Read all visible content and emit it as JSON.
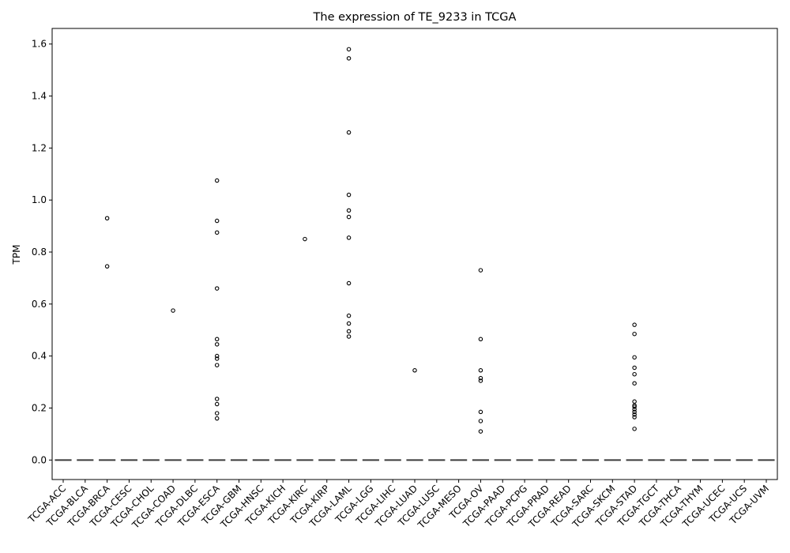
{
  "chart_data": {
    "type": "box",
    "title": "The expression of TE_9233 in TCGA",
    "xlabel": "",
    "ylabel": "TPM",
    "ylim": [
      -0.075,
      1.66
    ],
    "yticks": [
      0.0,
      0.2,
      0.4,
      0.6,
      0.8,
      1.0,
      1.2,
      1.4,
      1.6
    ],
    "ytick_labels": [
      "0.0",
      "0.2",
      "0.4",
      "0.6",
      "0.8",
      "1.0",
      "1.2",
      "1.4",
      "1.6"
    ],
    "grid": false,
    "categories": [
      "TCGA-ACC",
      "TCGA-BLCA",
      "TCGA-BRCA",
      "TCGA-CESC",
      "TCGA-CHOL",
      "TCGA-COAD",
      "TCGA-DLBC",
      "TCGA-ESCA",
      "TCGA-GBM",
      "TCGA-HNSC",
      "TCGA-KICH",
      "TCGA-KIRC",
      "TCGA-KIRP",
      "TCGA-LAML",
      "TCGA-LGG",
      "TCGA-LIHC",
      "TCGA-LUAD",
      "TCGA-LUSC",
      "TCGA-MESO",
      "TCGA-OV",
      "TCGA-PAAD",
      "TCGA-PCPG",
      "TCGA-PRAD",
      "TCGA-READ",
      "TCGA-SARC",
      "TCGA-SKCM",
      "TCGA-STAD",
      "TCGA-TGCT",
      "TCGA-THCA",
      "TCGA-THYM",
      "TCGA-UCEC",
      "TCGA-UCS",
      "TCGA-UVM"
    ],
    "median": [
      0,
      0,
      0,
      0,
      0,
      0,
      0,
      0,
      0,
      0,
      0,
      0,
      0,
      0,
      0,
      0,
      0,
      0,
      0,
      0,
      0,
      0,
      0,
      0,
      0,
      0,
      0,
      0,
      0,
      0,
      0,
      0,
      0
    ],
    "outliers": [
      [],
      [],
      [
        0.93,
        0.745
      ],
      [],
      [],
      [
        0.575
      ],
      [],
      [
        1.075,
        0.92,
        0.875,
        0.66,
        0.465,
        0.445,
        0.4,
        0.39,
        0.365,
        0.235,
        0.215,
        0.18,
        0.16
      ],
      [],
      [],
      [],
      [
        0.85
      ],
      [],
      [
        1.58,
        1.545,
        1.26,
        1.02,
        0.96,
        0.935,
        0.855,
        0.68,
        0.555,
        0.525,
        0.495,
        0.475
      ],
      [],
      [],
      [
        0.345
      ],
      [],
      [],
      [
        0.73,
        0.465,
        0.345,
        0.315,
        0.305,
        0.185,
        0.15,
        0.11
      ],
      [],
      [],
      [],
      [],
      [],
      [],
      [
        0.52,
        0.485,
        0.395,
        0.355,
        0.33,
        0.295,
        0.225,
        0.21,
        0.205,
        0.195,
        0.185,
        0.175,
        0.165,
        0.12
      ],
      [],
      [],
      [],
      [],
      [],
      []
    ],
    "colors": {
      "box_line": "#3a3a3a",
      "outlier_edge": "#000000",
      "axis": "#000000"
    }
  }
}
